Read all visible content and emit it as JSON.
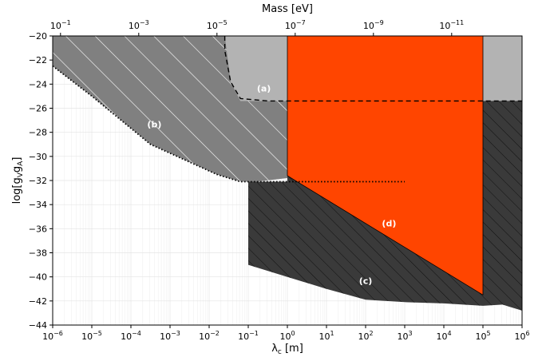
{
  "chart_data": {
    "type": "area",
    "title": "",
    "xlabel": "λ",
    "xlabel_sub": "c",
    "xlabel_unit": " [m]",
    "ylabel": "log[g",
    "ylabel_sub1": "V",
    "ylabel_mid": "g",
    "ylabel_sub2": "A",
    "ylabel_end": "]",
    "top_xlabel": "Mass [eV]",
    "x_scale": "log",
    "xlim_exp": [
      -6,
      6
    ],
    "ylim": [
      -44,
      -20
    ],
    "x_ticks": [
      {
        "base": "10",
        "exp": "−6",
        "e": -6
      },
      {
        "base": "10",
        "exp": "−5",
        "e": -5
      },
      {
        "base": "10",
        "exp": "−4",
        "e": -4
      },
      {
        "base": "10",
        "exp": "−3",
        "e": -3
      },
      {
        "base": "10",
        "exp": "−2",
        "e": -2
      },
      {
        "base": "10",
        "exp": "−1",
        "e": -1
      },
      {
        "base": "10",
        "exp": "0",
        "e": 0
      },
      {
        "base": "10",
        "exp": "1",
        "e": 1
      },
      {
        "base": "10",
        "exp": "2",
        "e": 2
      },
      {
        "base": "10",
        "exp": "3",
        "e": 3
      },
      {
        "base": "10",
        "exp": "4",
        "e": 4
      },
      {
        "base": "10",
        "exp": "5",
        "e": 5
      },
      {
        "base": "10",
        "exp": "6",
        "e": 6
      }
    ],
    "y_ticks": [
      "−20",
      "−22",
      "−24",
      "−26",
      "−28",
      "−30",
      "−32",
      "−34",
      "−36",
      "−38",
      "−40",
      "−42",
      "−44"
    ],
    "y_tick_values": [
      -20,
      -22,
      -24,
      -26,
      -28,
      -30,
      -32,
      -34,
      -36,
      -38,
      -40,
      -42,
      -44
    ],
    "top_ticks": [
      {
        "base": "10",
        "exp": "−1",
        "lambda_exp": -5.8
      },
      {
        "base": "10",
        "exp": "−3",
        "lambda_exp": -3.8
      },
      {
        "base": "10",
        "exp": "−5",
        "lambda_exp": -1.8
      },
      {
        "base": "10",
        "exp": "−7",
        "lambda_exp": 0.2
      },
      {
        "base": "10",
        "exp": "−9",
        "lambda_exp": 2.2
      },
      {
        "base": "10",
        "exp": "−11",
        "lambda_exp": 4.2
      }
    ],
    "regions": [
      {
        "label": "(a)",
        "color": "#b3b3b3",
        "label_at": [
          -0.6,
          -24.6
        ],
        "points": [
          [
            -1.6,
            -20
          ],
          [
            0,
            -20
          ],
          [
            0,
            -25.4
          ],
          [
            -1.2,
            -25.4
          ],
          [
            -1.45,
            -23.8
          ],
          [
            -1.6,
            -21.2
          ]
        ]
      },
      {
        "label": "",
        "color": "#b3b3b3",
        "points": [
          [
            5,
            -20
          ],
          [
            6,
            -20
          ],
          [
            6,
            -25.4
          ],
          [
            5,
            -25.4
          ]
        ]
      },
      {
        "label": "(b)",
        "color": "#808080",
        "hatch": "light",
        "label_at": [
          -3.4,
          -27.6
        ],
        "points": [
          [
            -6,
            -20
          ],
          [
            -1.6,
            -20
          ],
          [
            -1.45,
            -23.8
          ],
          [
            -1.2,
            -25.4
          ],
          [
            0,
            -25.4
          ],
          [
            0,
            -31.8
          ],
          [
            -0.8,
            -32.1
          ],
          [
            -1.2,
            -32.1
          ],
          [
            -1.8,
            -31.5
          ],
          [
            -3.5,
            -29
          ],
          [
            -5,
            -25
          ],
          [
            -6,
            -22.5
          ]
        ]
      },
      {
        "label": "(c)",
        "color": "#3a3a3a",
        "hatch": "dark",
        "label_at": [
          2.0,
          -40.6
        ],
        "points": [
          [
            -1,
            -32.1
          ],
          [
            0,
            -32.1
          ],
          [
            0,
            -31.6
          ],
          [
            5,
            -41.5
          ],
          [
            5,
            -25.4
          ],
          [
            6,
            -25.4
          ],
          [
            6,
            -42.8
          ],
          [
            5.5,
            -42.3
          ],
          [
            5,
            -42.4
          ],
          [
            4,
            -42.2
          ],
          [
            3,
            -42.1
          ],
          [
            2,
            -41.9
          ],
          [
            1,
            -41
          ],
          [
            0,
            -40
          ],
          [
            -1,
            -39
          ]
        ]
      },
      {
        "label": "(d)",
        "color": "#ff4500",
        "label_at": [
          2.6,
          -35.8
        ],
        "points": [
          [
            0,
            -20
          ],
          [
            5,
            -20
          ],
          [
            5,
            -41.5
          ],
          [
            0,
            -31.6
          ]
        ]
      }
    ],
    "lines": [
      {
        "style": "dashed",
        "points": [
          [
            -1.6,
            -20
          ],
          [
            -1.6,
            -21.2
          ],
          [
            -1.45,
            -23.8
          ],
          [
            -1.2,
            -25.2
          ],
          [
            -0.5,
            -25.4
          ],
          [
            6,
            -25.4
          ]
        ]
      },
      {
        "style": "dotted",
        "points": [
          [
            -6,
            -22.5
          ],
          [
            -5,
            -25
          ],
          [
            -3.5,
            -29
          ],
          [
            -1.8,
            -31.5
          ],
          [
            -1.2,
            -32.1
          ],
          [
            3,
            -32.1
          ]
        ]
      }
    ],
    "grid": true,
    "legend": "none"
  }
}
